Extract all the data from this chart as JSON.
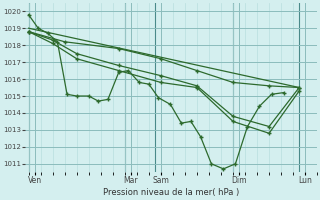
{
  "xlabel": "Pression niveau de la mer( hPa )",
  "bg_color": "#d4efef",
  "line_color": "#2d6a2d",
  "grid_minor_color": "#b8dede",
  "grid_major_color": "#8bbcbc",
  "ylim": [
    1010.5,
    1020.5
  ],
  "yticks": [
    1011,
    1012,
    1013,
    1014,
    1015,
    1016,
    1017,
    1018,
    1019,
    1020
  ],
  "xlim": [
    -0.3,
    24.0
  ],
  "x_day_labels": [
    "Ven",
    "Mar",
    "Sam",
    "Dim",
    "Lun"
  ],
  "x_day_positions": [
    0.5,
    8.5,
    11.0,
    17.5,
    23.0
  ],
  "x_vline_positions": [
    0.0,
    8.0,
    10.5,
    17.0,
    22.5
  ],
  "series": [
    {
      "x": [
        0.0,
        0.8,
        1.6,
        2.4,
        3.2,
        4.0,
        5.0,
        5.8,
        6.6,
        7.5,
        8.3,
        9.2,
        10.0,
        10.8,
        11.8,
        12.7,
        13.5,
        14.3,
        15.2,
        16.2,
        17.2,
        18.2,
        19.2,
        20.2,
        21.2
      ],
      "y": [
        1019.8,
        1019.0,
        1018.7,
        1018.2,
        1015.1,
        1015.0,
        1015.0,
        1014.7,
        1014.8,
        1016.4,
        1016.5,
        1015.8,
        1015.7,
        1014.9,
        1014.5,
        1013.4,
        1013.5,
        1012.6,
        1011.0,
        1010.7,
        1011.0,
        1013.2,
        1014.4,
        1015.1,
        1015.2
      ],
      "marker": "+"
    },
    {
      "x": [
        0.0,
        2.0,
        4.0,
        7.5,
        11.0,
        14.0,
        17.0,
        20.0,
        22.5
      ],
      "y": [
        1018.8,
        1018.3,
        1017.5,
        1016.8,
        1016.2,
        1015.6,
        1013.8,
        1013.2,
        1015.5
      ],
      "marker": "+"
    },
    {
      "x": [
        0.0,
        2.0,
        4.0,
        7.5,
        11.0,
        14.0,
        17.0,
        20.0,
        22.5
      ],
      "y": [
        1018.8,
        1018.1,
        1017.2,
        1016.5,
        1015.8,
        1015.5,
        1013.5,
        1012.8,
        1015.3
      ],
      "marker": "+"
    },
    {
      "x": [
        0.0,
        3.0,
        7.5,
        11.0,
        14.0,
        17.0,
        20.0,
        22.5
      ],
      "y": [
        1018.8,
        1018.2,
        1017.8,
        1017.2,
        1016.5,
        1015.8,
        1015.6,
        1015.5
      ],
      "marker": "+"
    },
    {
      "x": [
        0.0,
        22.5
      ],
      "y": [
        1019.0,
        1015.5
      ],
      "marker": null
    }
  ]
}
